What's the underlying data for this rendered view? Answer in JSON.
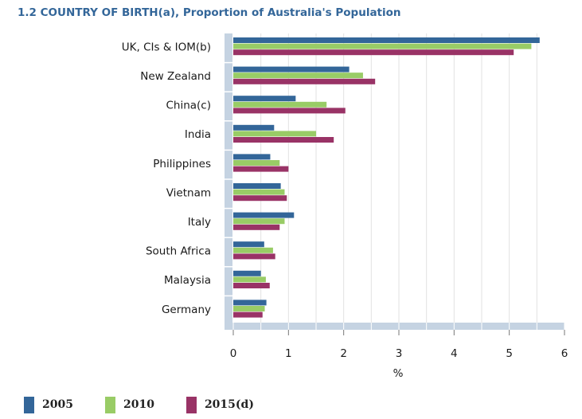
{
  "chart_data": {
    "type": "bar",
    "orientation": "horizontal",
    "title": "1.2 COUNTRY OF BIRTH(a), Proportion of Australia's Population",
    "xlabel": "%",
    "ylabel": "",
    "xlim": [
      0,
      6
    ],
    "xticks": [
      0,
      1,
      2,
      3,
      4,
      5,
      6
    ],
    "categories": [
      "UK, CIs & IOM(b)",
      "New Zealand",
      "China(c)",
      "India",
      "Philippines",
      "Vietnam",
      "Italy",
      "South Africa",
      "Malaysia",
      "Germany"
    ],
    "series": [
      {
        "name": "2005",
        "color": "#336699",
        "values": [
          5.55,
          2.1,
          1.13,
          0.74,
          0.67,
          0.86,
          1.1,
          0.56,
          0.5,
          0.6
        ]
      },
      {
        "name": "2010",
        "color": "#99cc66",
        "values": [
          5.4,
          2.35,
          1.69,
          1.5,
          0.84,
          0.93,
          0.93,
          0.72,
          0.59,
          0.57
        ]
      },
      {
        "name": "2015(d)",
        "color": "#993366",
        "values": [
          5.08,
          2.57,
          2.03,
          1.82,
          1.0,
          0.97,
          0.84,
          0.76,
          0.66,
          0.53
        ]
      }
    ],
    "legend_position": "bottom-left",
    "grid": true
  }
}
